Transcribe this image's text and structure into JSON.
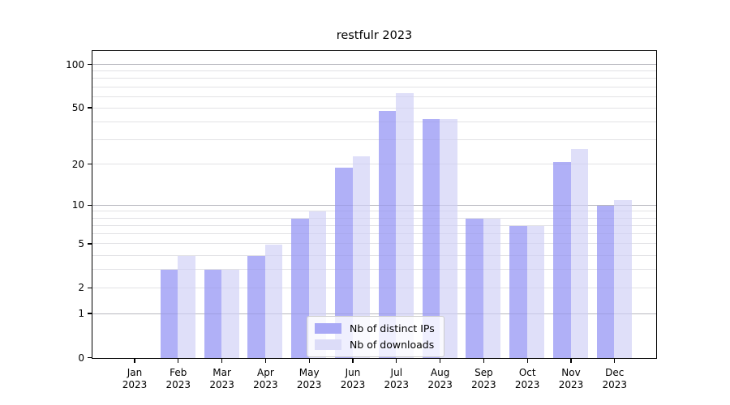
{
  "window": {
    "background": "#ffffff"
  },
  "chart_data": {
    "type": "bar",
    "title": "restfulr 2023",
    "categories": [
      "Jan 2023",
      "Feb 2023",
      "Mar 2023",
      "Apr 2023",
      "May 2023",
      "Jun 2023",
      "Jul 2023",
      "Aug 2023",
      "Sep 2023",
      "Oct 2023",
      "Nov 2023",
      "Dec 2023"
    ],
    "series": [
      {
        "name": "Nb of distinct IPs",
        "color": "#a9a9f6",
        "values": [
          0,
          3,
          3,
          4,
          8,
          19,
          48,
          42,
          8,
          7,
          21,
          10
        ]
      },
      {
        "name": "Nb of downloads",
        "color": "#dcdcf8",
        "values": [
          0,
          4,
          3,
          5,
          9,
          23,
          64,
          42,
          8,
          7,
          26,
          11
        ]
      }
    ],
    "yscale": "log1p",
    "ylim": [
      0,
      123
    ],
    "yticks": [
      0,
      1,
      2,
      5,
      10,
      20,
      50,
      100
    ],
    "yticks_minor": [
      3,
      4,
      6,
      7,
      8,
      9,
      30,
      40,
      60,
      70,
      80,
      90
    ],
    "grid": "horizontal",
    "legend_position": "lower-center",
    "xlabel": "",
    "ylabel": ""
  }
}
